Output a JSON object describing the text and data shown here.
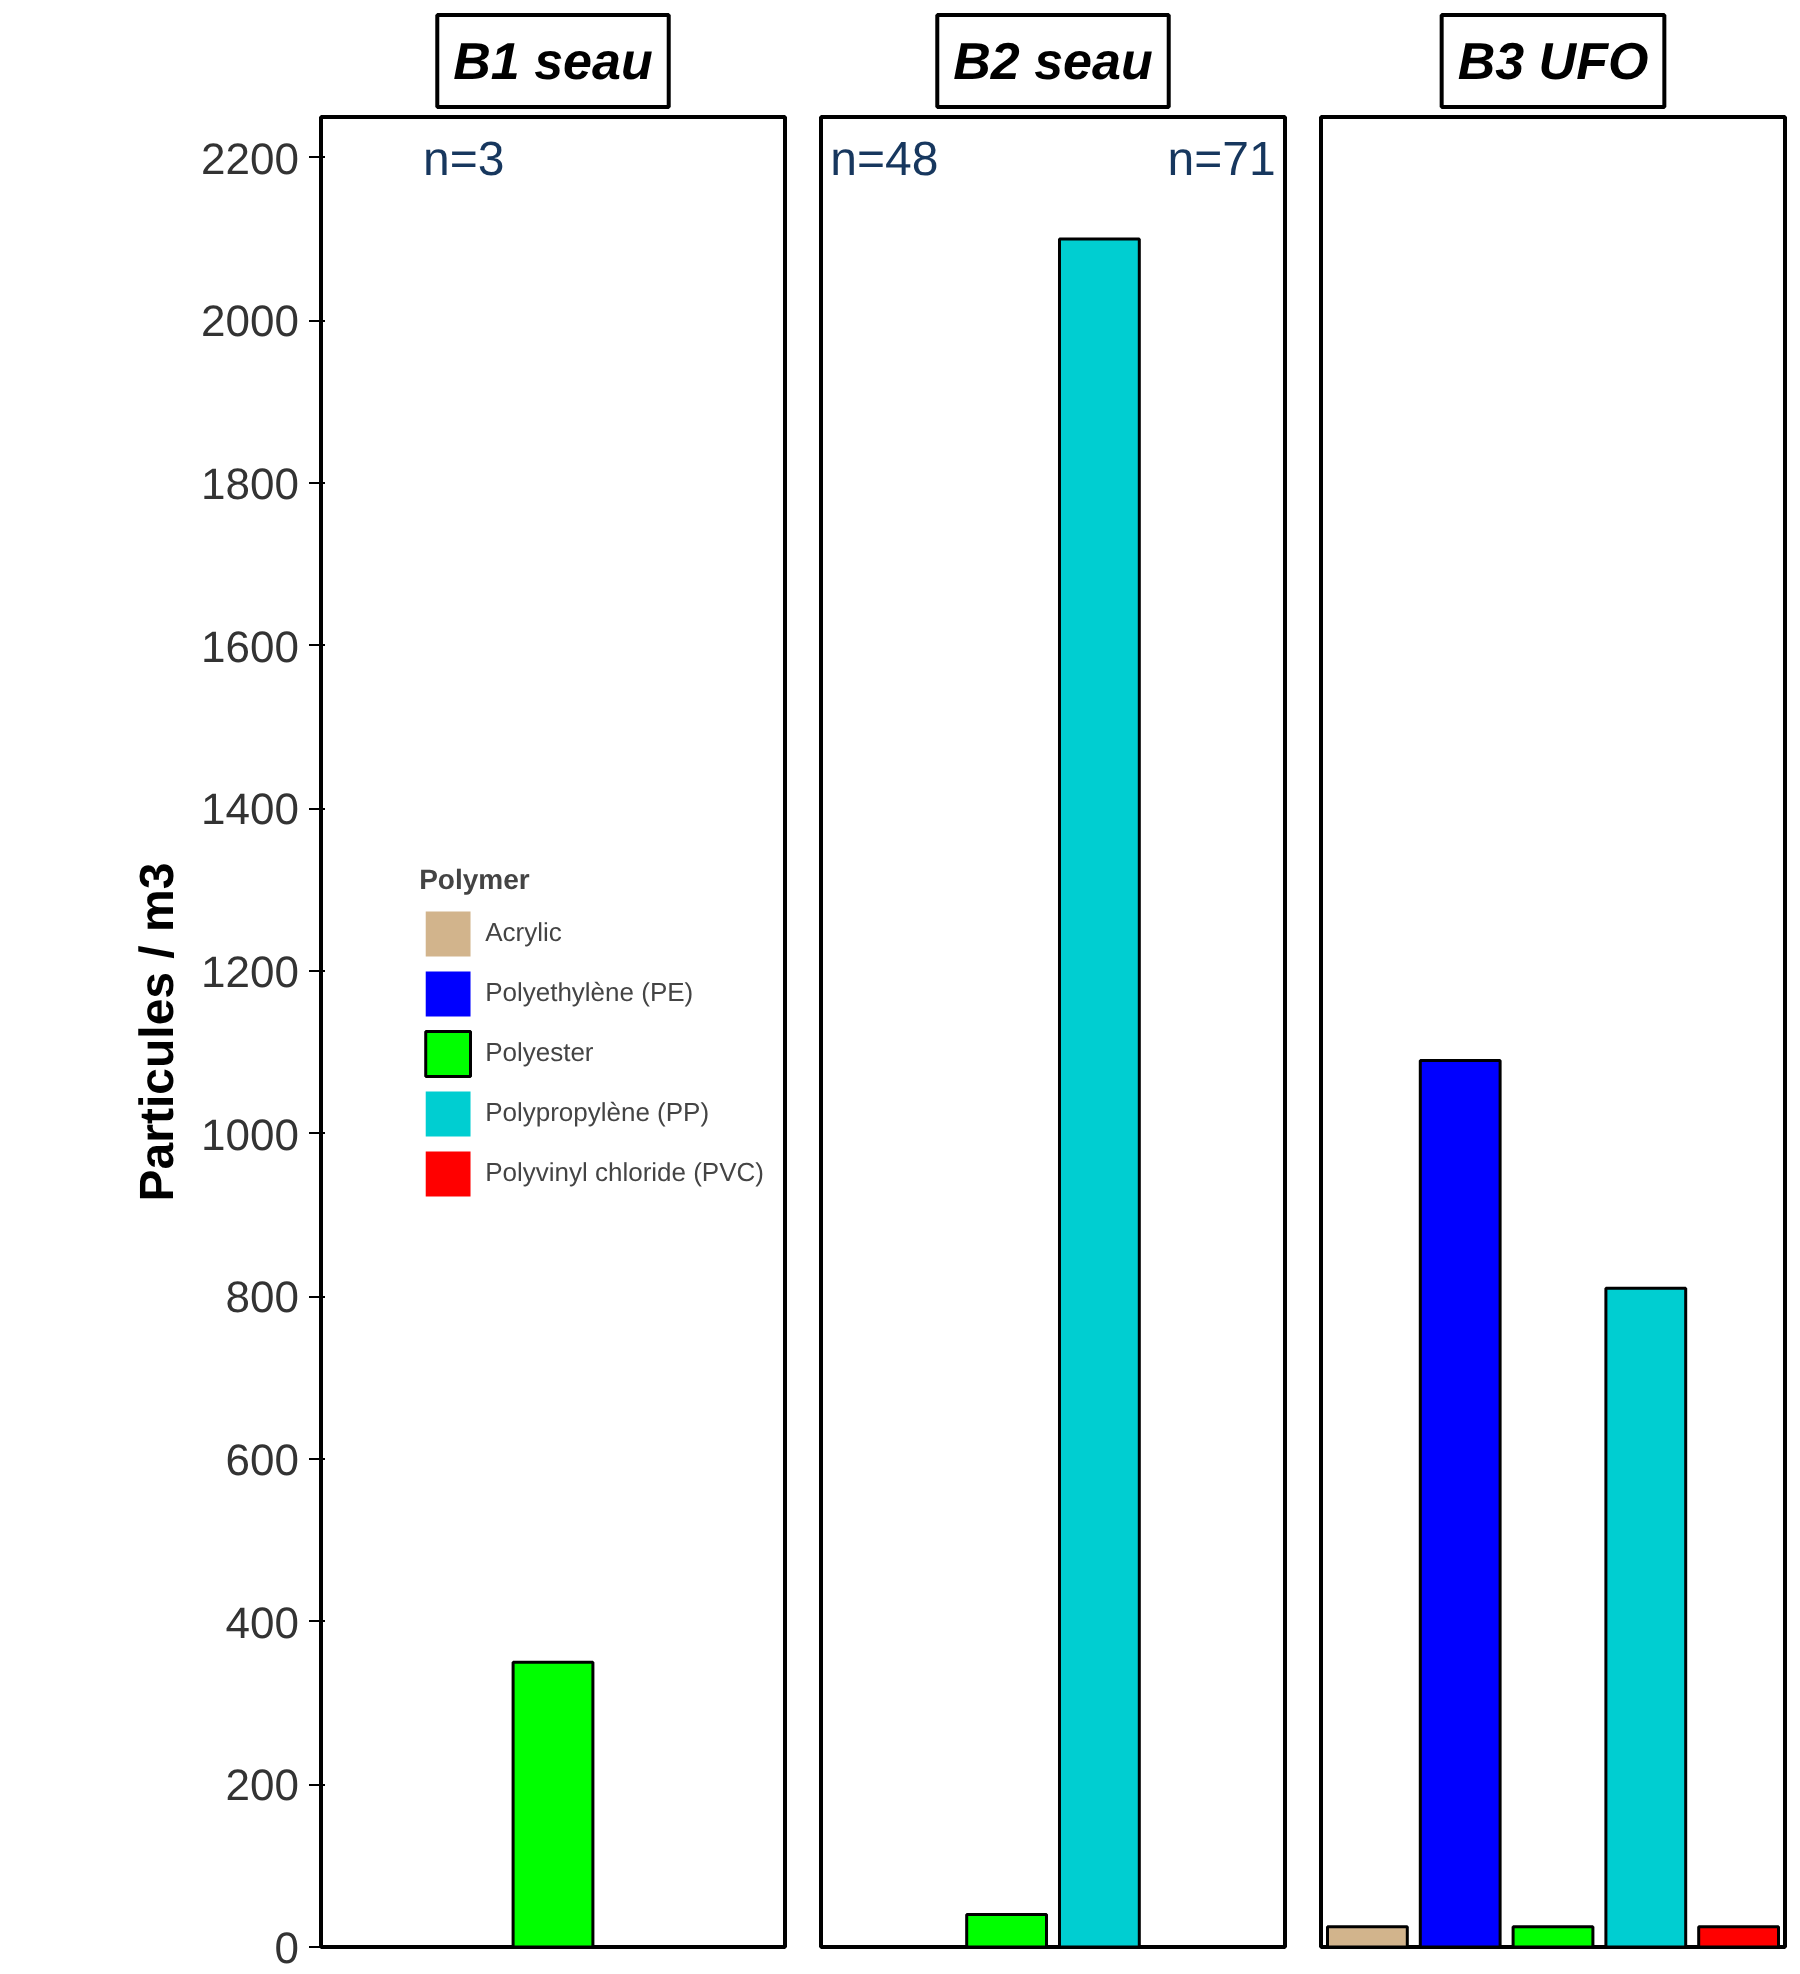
{
  "chart_data": [
    {
      "type": "bar",
      "title": "B1 seau",
      "ylabel": "Particules / m3",
      "categories": [
        null
      ],
      "ylim": [
        0,
        2250
      ],
      "yticks": [
        0,
        200,
        400,
        600,
        800,
        1000,
        1200,
        1400,
        1600,
        1800,
        2000,
        2200
      ],
      "tick_labels": "y",
      "grid": false,
      "legend": "right",
      "legend_title": "Polymer",
      "annotations": [
        "n=3"
      ],
      "series": [
        {
          "name": "Acrylic",
          "color": "#d2b48c",
          "values": [
            null
          ]
        },
        {
          "name": "Polyethylène (PE)",
          "color": "#0000ff",
          "values": [
            null
          ]
        },
        {
          "name": "Polyester",
          "color": "#00ff00",
          "values": [
            350
          ]
        },
        {
          "name": "Polypropylène (PP)",
          "color": "#00ced1",
          "values": [
            null
          ]
        },
        {
          "name": "Polyvinyl chloride (PVC)",
          "color": "#ff0000",
          "values": [
            null
          ]
        }
      ]
    },
    {
      "type": "bar",
      "title": "B2 seau",
      "categories": [
        null,
        null
      ],
      "ylim": [
        0,
        2250
      ],
      "yticks": [
        0,
        200,
        400,
        600,
        800,
        1000,
        1200,
        1400,
        1600,
        1800,
        2000,
        2200
      ],
      "tick_labels": false,
      "grid": false,
      "annotations": [
        "n=48",
        "n=71"
      ],
      "values": [
        40,
        2100
      ],
      "colors": [
        "#00ff00",
        "#00ced1"
      ]
    },
    {
      "type": "bar",
      "title": "B3 UFO",
      "categories": [
        null,
        null,
        null,
        null,
        null
      ],
      "ylim": [
        0,
        2250
      ],
      "yticks": [
        0,
        200,
        400,
        600,
        800,
        1000,
        1200,
        1400,
        1600,
        1800,
        2000,
        2200
      ],
      "tick_labels": false,
      "grid": false,
      "values": [
        25,
        1090,
        25,
        810,
        25
      ],
      "colors": [
        "#d2b48c",
        "#0000ff",
        "#00ff00",
        "#00ced1",
        "#ff0000"
      ]
    }
  ]
}
